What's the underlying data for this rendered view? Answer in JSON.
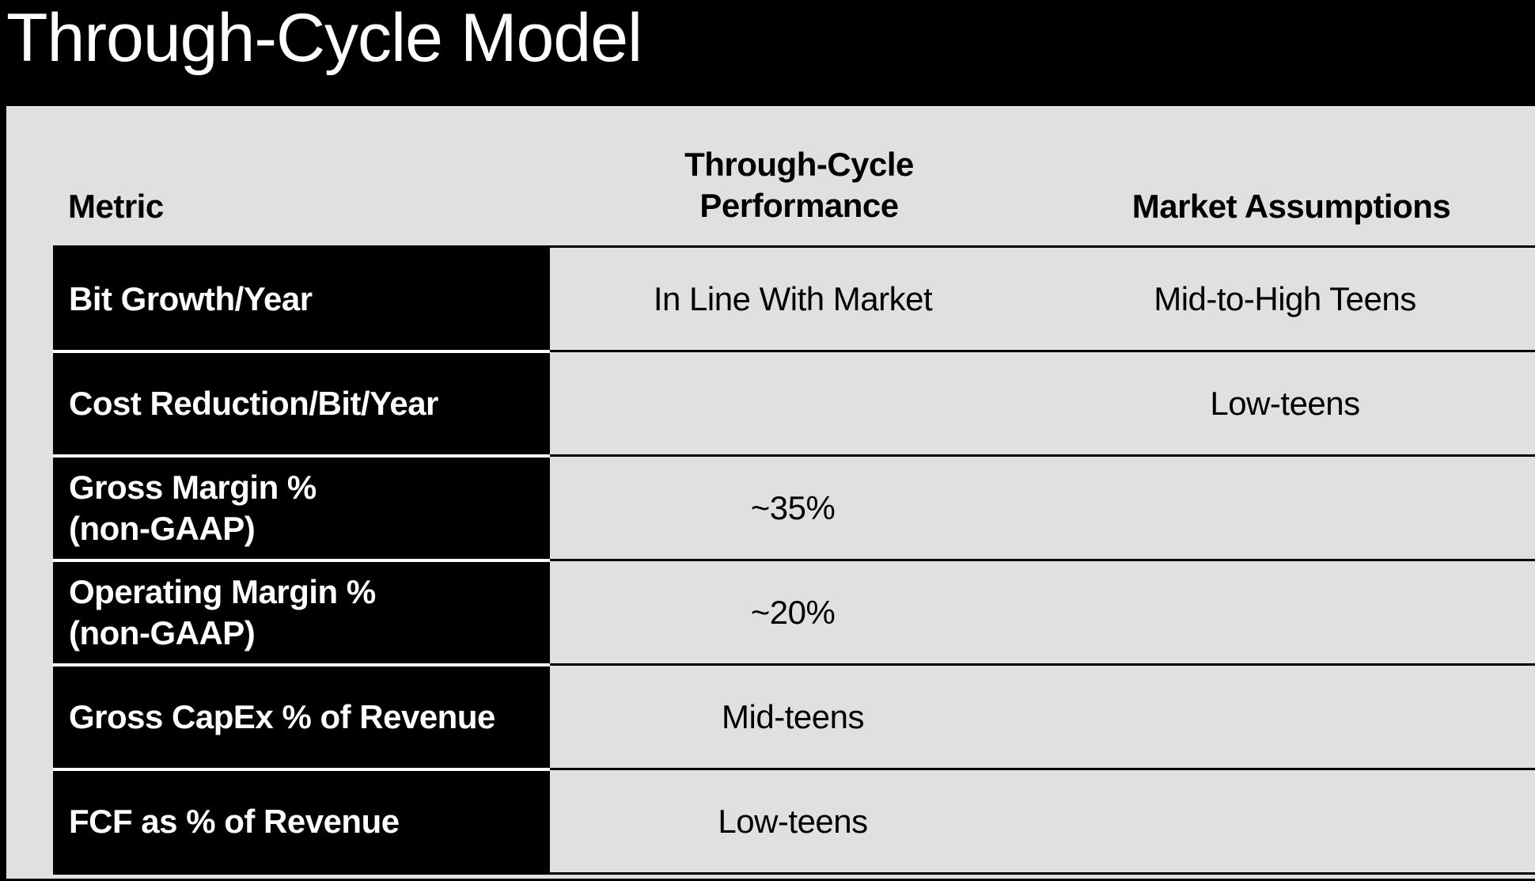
{
  "title": "Through-Cycle Model",
  "columns": {
    "metric": "Metric",
    "performance": "Through-Cycle\nPerformance",
    "market": "Market Assumptions"
  },
  "rows": [
    {
      "metric": "Bit Growth/Year",
      "performance": "In Line With Market",
      "market": "Mid-to-High Teens"
    },
    {
      "metric": "Cost Reduction/Bit/Year",
      "performance": "",
      "market": "Low-teens"
    },
    {
      "metric": "Gross Margin %\n(non-GAAP)",
      "performance": "~35%",
      "market": ""
    },
    {
      "metric": "Operating Margin %\n(non-GAAP)",
      "performance": "~20%",
      "market": ""
    },
    {
      "metric": "Gross CapEx % of Revenue",
      "performance": "Mid-teens",
      "market": ""
    },
    {
      "metric": "FCF as % of Revenue",
      "performance": "Low-teens",
      "market": ""
    }
  ],
  "colors": {
    "background": "#000000",
    "panel": "#e0e0e0",
    "label_cell": "#000000",
    "label_text": "#ffffff",
    "body_text": "#000000"
  }
}
